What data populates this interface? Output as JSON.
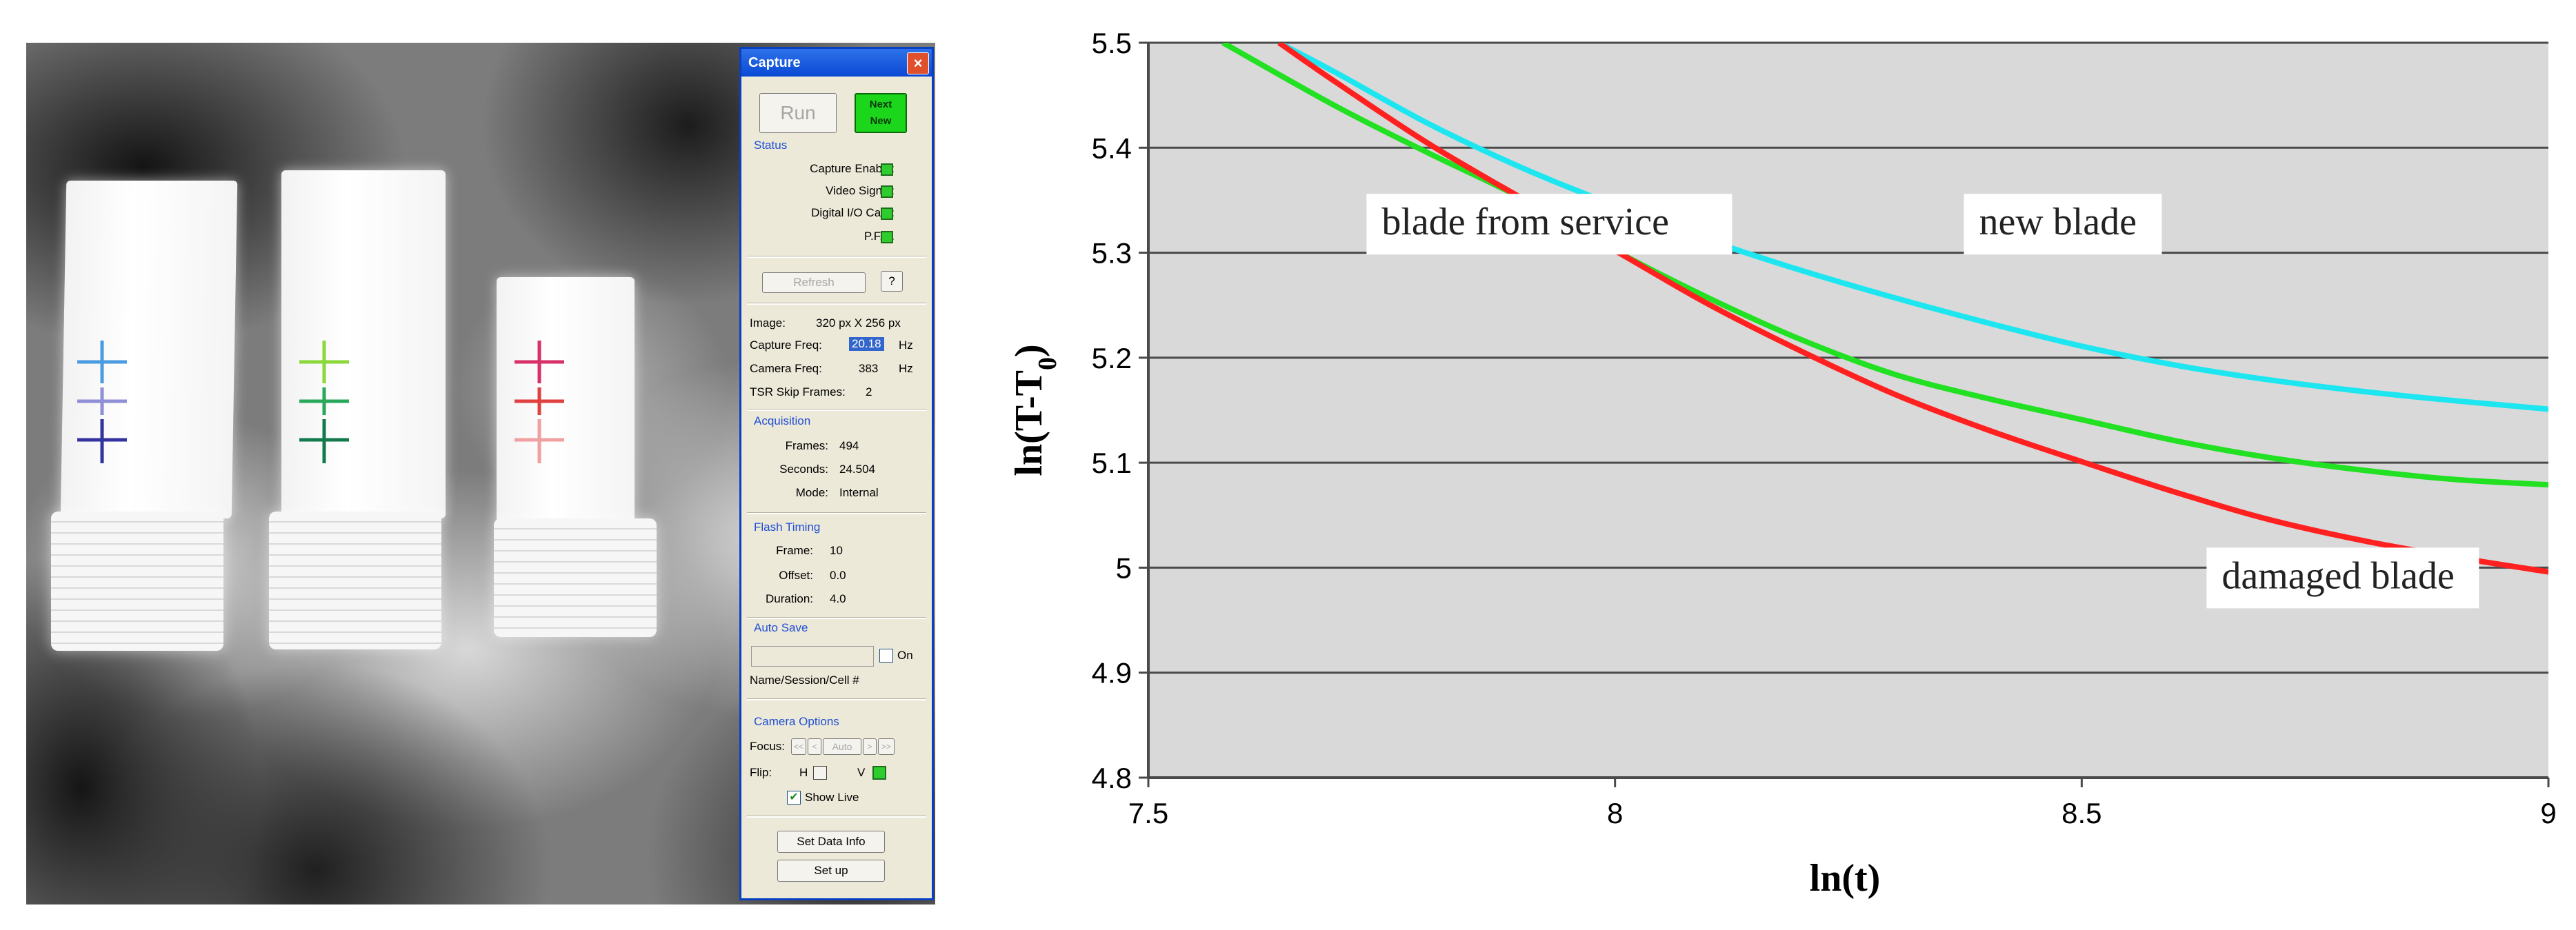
{
  "capture_window": {
    "title": "Capture",
    "close_symbol": "×",
    "run_button": "Run",
    "next_line1": "Next",
    "next_line2": "New",
    "status": {
      "title": "Status",
      "items": [
        "Capture Enable:",
        "Video Signal:",
        "Digital I/O Card:",
        "P.F.C."
      ]
    },
    "refresh_button": "Refresh",
    "help_button": "?",
    "image_label": "Image:",
    "image_value": "320 px X 256 px",
    "capture_freq_label": "Capture Freq:",
    "capture_freq_value": "20.18",
    "camera_freq_label": "Camera Freq:",
    "camera_freq_value": "383",
    "hz1": "Hz",
    "hz2": "Hz",
    "tsr_label": "TSR Skip Frames:",
    "tsr_value": "2",
    "acquisition": {
      "title": "Acquisition",
      "frames_label": "Frames:",
      "frames_value": "494",
      "seconds_label": "Seconds:",
      "seconds_value": "24.504",
      "mode_label": "Mode:",
      "mode_value": "Internal"
    },
    "flash_timing": {
      "title": "Flash Timing",
      "frame_label": "Frame:",
      "frame_value": "10",
      "offset_label": "Offset:",
      "offset_value": "0.0",
      "duration_label": "Duration:",
      "duration_value": "4.0"
    },
    "auto_save": {
      "title": "Auto Save",
      "on_label": "On",
      "name_label": "Name/Session/Cell #"
    },
    "camera_options": {
      "title": "Camera Options",
      "focus_label": "Focus:",
      "focus_buttons": [
        "<<",
        "<",
        "Auto",
        ">",
        ">>"
      ],
      "flip_label": "Flip:",
      "flip_h": "H",
      "flip_v": "V",
      "show_live": "Show Live"
    },
    "set_data_info_button": "Set Data Info",
    "setup_button": "Set up"
  },
  "chart_data": {
    "type": "line",
    "xlabel": "ln(t)",
    "ylabel_main": "ln(T-T",
    "ylabel_sub": "0",
    "ylabel_close": ")",
    "xlim": [
      7.5,
      9
    ],
    "ylim": [
      4.8,
      5.5
    ],
    "x_ticks": [
      "7.5",
      "8",
      "8.5",
      "9"
    ],
    "y_ticks": [
      "4.8",
      "4.9",
      "5",
      "5.1",
      "5.2",
      "5.3",
      "5.4",
      "5.5"
    ],
    "grid": true,
    "background": "#d9d9d9",
    "series": [
      {
        "name": "new blade",
        "color": "#1ee6f0",
        "x": [
          7.64,
          7.7,
          7.8,
          7.9,
          8.0,
          8.1,
          8.2,
          8.3,
          8.4,
          8.5,
          8.6,
          8.7,
          8.8,
          8.9,
          9.0
        ],
        "y": [
          5.5,
          5.472,
          5.423,
          5.381,
          5.345,
          5.312,
          5.283,
          5.257,
          5.233,
          5.211,
          5.193,
          5.179,
          5.168,
          5.159,
          5.151
        ]
      },
      {
        "name": "blade from service",
        "color": "#22e022",
        "x": [
          7.58,
          7.7,
          7.8,
          7.9,
          8.0,
          8.1,
          8.2,
          8.3,
          8.4,
          8.5,
          8.6,
          8.7,
          8.8,
          8.9,
          9.0
        ],
        "y": [
          5.5,
          5.44,
          5.395,
          5.352,
          5.302,
          5.257,
          5.217,
          5.184,
          5.161,
          5.141,
          5.121,
          5.105,
          5.093,
          5.084,
          5.079
        ]
      },
      {
        "name": "damaged blade",
        "color": "#ff2020",
        "x": [
          7.64,
          7.7,
          7.8,
          7.9,
          8.0,
          8.1,
          8.2,
          8.3,
          8.4,
          8.5,
          8.6,
          8.7,
          8.8,
          8.9,
          9.0
        ],
        "y": [
          5.5,
          5.463,
          5.404,
          5.352,
          5.302,
          5.251,
          5.206,
          5.165,
          5.131,
          5.101,
          5.072,
          5.046,
          5.026,
          5.01,
          4.996
        ]
      }
    ],
    "annotations": [
      {
        "text": "blade from service",
        "x": 7.75,
        "y": 5.318
      },
      {
        "text": "new blade",
        "x": 8.39,
        "y": 5.318
      },
      {
        "text": "damaged blade",
        "x": 8.65,
        "y": 4.981
      }
    ]
  }
}
